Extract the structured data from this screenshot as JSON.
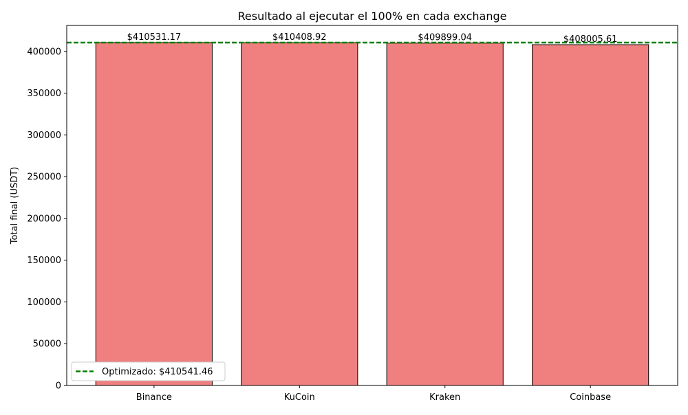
{
  "chart_data": {
    "type": "bar",
    "title": "Resultado al ejecutar el 100% en cada exchange",
    "xlabel": "",
    "ylabel": "Total final (USDT)",
    "categories": [
      "Binance",
      "KuCoin",
      "Kraken",
      "Coinbase"
    ],
    "values": [
      410531.17,
      410408.92,
      409899.04,
      408005.61
    ],
    "value_labels": [
      "$410531.17",
      "$410408.92",
      "$409899.04",
      "$408005.61"
    ],
    "ylim": [
      0,
      431069
    ],
    "yticks": [
      0,
      50000,
      100000,
      150000,
      200000,
      250000,
      300000,
      350000,
      400000
    ],
    "reference_line": {
      "value": 410541.46,
      "label": "Optimizado: $410541.46",
      "color": "#008000",
      "style": "dashed"
    },
    "bar_color": "#f08080",
    "bar_edge_color": "#000000",
    "grid": false,
    "legend": "lower-left"
  }
}
